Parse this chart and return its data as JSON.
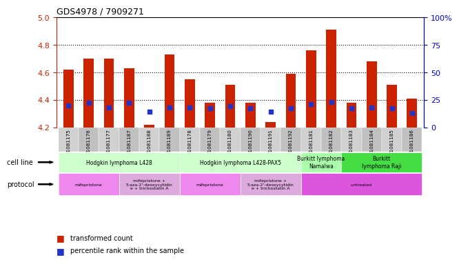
{
  "title": "GDS4978 / 7909271",
  "samples": [
    "GSM1081175",
    "GSM1081176",
    "GSM1081177",
    "GSM1081187",
    "GSM1081188",
    "GSM1081189",
    "GSM1081178",
    "GSM1081179",
    "GSM1081180",
    "GSM1081190",
    "GSM1081191",
    "GSM1081192",
    "GSM1081181",
    "GSM1081182",
    "GSM1081183",
    "GSM1081184",
    "GSM1081185",
    "GSM1081186"
  ],
  "transformed_count": [
    4.62,
    4.7,
    4.7,
    4.63,
    4.22,
    4.73,
    4.55,
    4.38,
    4.51,
    4.38,
    4.24,
    4.59,
    4.76,
    4.91,
    4.38,
    4.68,
    4.51,
    4.41
  ],
  "percentile_rank_pct": [
    20,
    22,
    18,
    22,
    14,
    18,
    18,
    17,
    19,
    17,
    14,
    17,
    21,
    23,
    17,
    18,
    17,
    13
  ],
  "ymin": 4.2,
  "ymax": 5.0,
  "yticks": [
    4.2,
    4.4,
    4.6,
    4.8,
    5.0
  ],
  "right_yticks_pct": [
    0,
    25,
    50,
    75,
    100
  ],
  "bar_color": "#cc2200",
  "percentile_color": "#2233cc",
  "cell_line_groups": [
    {
      "label": "Hodgkin lymphoma L428",
      "start": 0,
      "end": 5,
      "color": "#ccffcc"
    },
    {
      "label": "Hodgkin lymphoma L428-PAX5",
      "start": 6,
      "end": 11,
      "color": "#ccffcc"
    },
    {
      "label": "Burkitt lymphoma\nNamalwa",
      "start": 12,
      "end": 13,
      "color": "#aaffaa"
    },
    {
      "label": "Burkitt\nlymphoma Raji",
      "start": 14,
      "end": 17,
      "color": "#44dd44"
    }
  ],
  "protocol_groups": [
    {
      "label": "mifepristone",
      "start": 0,
      "end": 2,
      "color": "#ee88ee"
    },
    {
      "label": "mifepristone +\n5-aza-2'-deoxycytidin\ne + trichostatin A",
      "start": 3,
      "end": 5,
      "color": "#ddaadd"
    },
    {
      "label": "mifepristone",
      "start": 6,
      "end": 8,
      "color": "#ee88ee"
    },
    {
      "label": "mifepristone +\n5-aza-2'-deoxycytidin\ne + trichostatin A",
      "start": 9,
      "end": 11,
      "color": "#ddaadd"
    },
    {
      "label": "untreated",
      "start": 12,
      "end": 17,
      "color": "#dd55dd"
    }
  ],
  "cell_line_label": "cell line",
  "protocol_label": "protocol",
  "legend_transformed": "transformed count",
  "legend_percentile": "percentile rank within the sample",
  "bg_color": "#ffffff",
  "axis_color_left": "#cc2200",
  "axis_color_right": "#0000cc"
}
